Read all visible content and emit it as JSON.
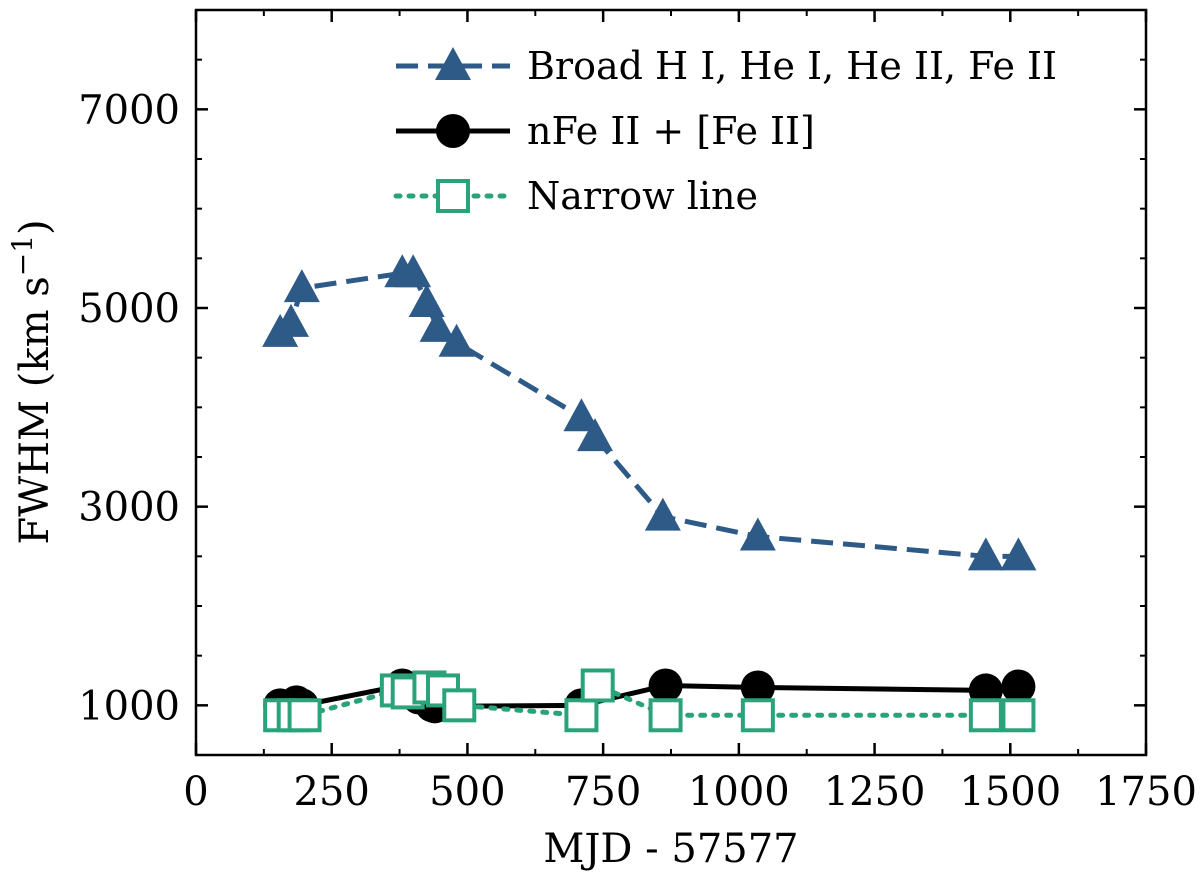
{
  "chart_data": {
    "type": "line",
    "xlabel": "MJD - 57577",
    "ylabel": "FWHM (km s",
    "ylabel_sup": "−1",
    "ylabel_close": ")",
    "xlim": [
      0,
      1750
    ],
    "ylim": [
      500,
      8000
    ],
    "xticks": [
      0,
      250,
      500,
      750,
      1000,
      1250,
      1500,
      1750
    ],
    "xtick_labels": [
      "0",
      "250",
      "500",
      "750",
      "1000",
      "1250",
      "1500",
      "1750"
    ],
    "xminor": [
      125,
      375,
      625,
      875,
      1125,
      1375,
      1625
    ],
    "yticks": [
      1000,
      3000,
      5000,
      7000
    ],
    "ytick_labels": [
      "1000",
      "3000",
      "5000",
      "7000"
    ],
    "yminor": [
      1500,
      2000,
      2500,
      3500,
      4000,
      4500,
      5500,
      6000,
      6500,
      7500
    ],
    "grid": false,
    "legend_position": "top-right",
    "series": [
      {
        "name": "Broad H I, He I, He II, Fe II",
        "color": "#2e5a88",
        "line": "dashed",
        "marker": "triangle",
        "x": [
          155,
          175,
          195,
          380,
          400,
          425,
          445,
          480,
          710,
          735,
          860,
          1035,
          1455,
          1515
        ],
        "y": [
          4750,
          4850,
          5200,
          5350,
          5350,
          5050,
          4800,
          4650,
          3900,
          3700,
          2900,
          2700,
          2500,
          2500
        ]
      },
      {
        "name": "nFe II + [Fe II]",
        "color": "#000000",
        "line": "solid",
        "marker": "circle",
        "x": [
          155,
          185,
          195,
          380,
          410,
          435,
          440,
          710,
          865,
          1035,
          1455,
          1515
        ],
        "y": [
          1000,
          1030,
          1000,
          1200,
          1080,
          1000,
          990,
          1000,
          1200,
          1180,
          1150,
          1190
        ],
        "order": [
          0,
          1,
          2,
          3,
          4,
          5,
          6,
          7,
          8,
          9,
          10,
          11
        ]
      },
      {
        "name": "Narrow line",
        "color": "#2aa37a",
        "line": "dotted",
        "marker": "square",
        "x": [
          155,
          180,
          200,
          370,
          390,
          430,
          455,
          485,
          710,
          740,
          865,
          1035,
          1455,
          1515
        ],
        "y": [
          900,
          900,
          900,
          1150,
          1130,
          1180,
          1150,
          1000,
          900,
          1200,
          900,
          900,
          900,
          900
        ]
      }
    ]
  }
}
